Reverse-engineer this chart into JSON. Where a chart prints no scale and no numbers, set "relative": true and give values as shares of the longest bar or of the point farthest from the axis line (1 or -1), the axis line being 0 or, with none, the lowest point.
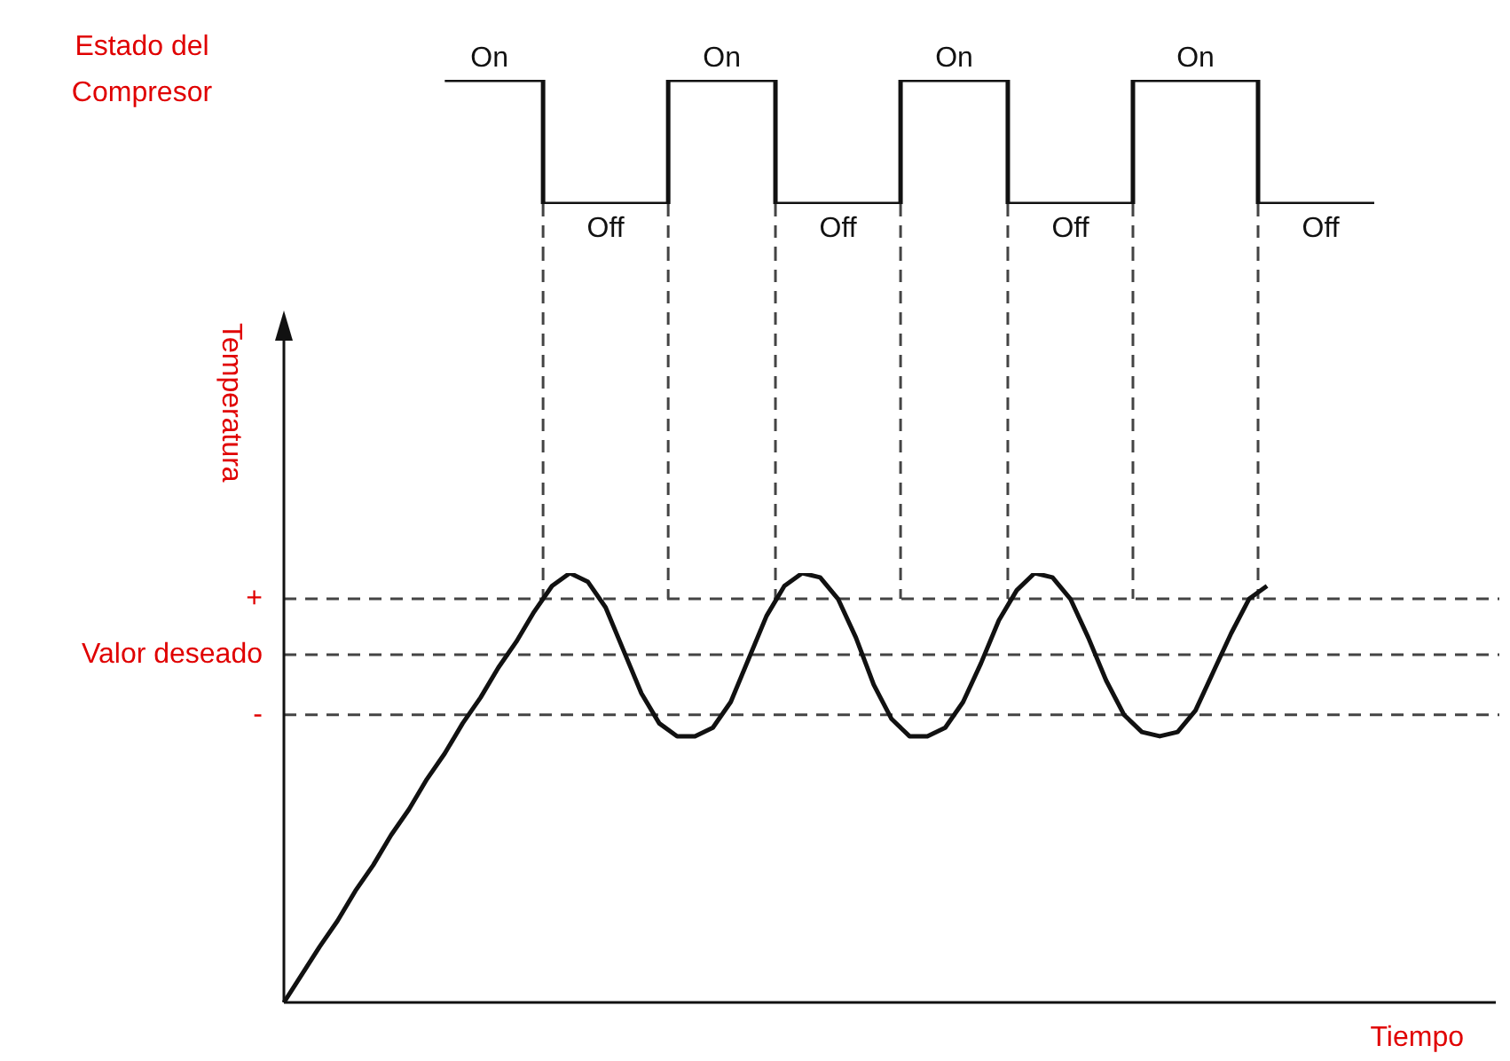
{
  "chart_data": [
    {
      "type": "step",
      "relative": true,
      "ylabel": "Estado del Compresor",
      "legend": false,
      "categories": [
        null,
        null,
        null,
        null,
        null,
        null,
        null,
        null,
        null,
        null,
        null,
        null,
        null,
        null,
        null,
        null,
        null,
        null,
        null,
        null,
        null,
        null,
        null,
        null,
        null,
        null,
        null,
        null,
        null,
        null,
        null,
        null,
        null,
        null,
        null,
        null,
        null,
        null,
        null,
        null,
        null,
        null,
        null,
        null,
        null,
        null,
        null,
        null,
        null,
        null,
        null,
        null,
        null,
        null,
        null,
        null,
        null,
        null,
        null,
        null,
        null,
        null,
        null,
        null,
        null,
        null,
        null,
        null,
        null
      ],
      "series": [
        {
          "color": "#111111",
          "values": [
            null,
            null,
            null,
            null,
            null,
            null,
            null,
            null,
            null,
            1,
            1,
            1,
            1,
            1,
            1,
            0,
            0,
            0,
            0,
            0,
            0,
            0,
            1,
            1,
            1,
            1,
            1,
            1,
            0,
            0,
            0,
            0,
            0,
            0,
            0,
            1,
            1,
            1,
            1,
            1,
            1,
            0,
            0,
            0,
            0,
            0,
            0,
            0,
            1,
            1,
            1,
            1,
            1,
            1,
            1,
            0,
            0,
            0,
            0,
            0,
            0,
            0,
            null,
            null,
            null,
            null,
            null,
            null,
            null
          ]
        }
      ],
      "annotations": [
        "On",
        "Off",
        "On",
        "Off",
        "On",
        "Off",
        "On",
        "Off"
      ]
    },
    {
      "type": "line",
      "relative": true,
      "xlabel": "Tiempo",
      "ylabel": "Temperatura",
      "legend": false,
      "categories": [
        null,
        null,
        null,
        null,
        null,
        null,
        null,
        null,
        null,
        null,
        null,
        null,
        null,
        null,
        null,
        null,
        null,
        null,
        null,
        null,
        null,
        null,
        null,
        null,
        null,
        null,
        null,
        null,
        null,
        null,
        null,
        null,
        null,
        null,
        null,
        null,
        null,
        null,
        null,
        null,
        null,
        null,
        null,
        null,
        null,
        null,
        null,
        null,
        null,
        null,
        null,
        null,
        null,
        null,
        null,
        null,
        null,
        null,
        null,
        null,
        null,
        null,
        null,
        null,
        null,
        null,
        null,
        null,
        null
      ],
      "series": [
        {
          "color": "#111111",
          "values": [
            0,
            0.065,
            0.13,
            0.19,
            0.26,
            0.32,
            0.39,
            0.45,
            0.52,
            0.58,
            0.65,
            0.71,
            0.78,
            0.84,
            0.91,
            0.97,
            1,
            0.98,
            0.92,
            0.82,
            0.72,
            0.65,
            0.62,
            0.62,
            0.64,
            0.7,
            0.8,
            0.9,
            0.97,
            1,
            0.99,
            0.94,
            0.85,
            0.74,
            0.66,
            0.62,
            0.62,
            0.64,
            0.7,
            0.79,
            0.89,
            0.96,
            1,
            0.99,
            0.94,
            0.85,
            0.75,
            0.67,
            0.63,
            0.62,
            0.63,
            0.68,
            0.77,
            0.86,
            0.94,
            0.97,
            null,
            null,
            null,
            null,
            null,
            null,
            null,
            null,
            null,
            null,
            null,
            null,
            null
          ]
        }
      ],
      "ref_lines": [
        {
          "axis": "y",
          "value": 0.94,
          "label": "+",
          "color": "#444444",
          "line_style": "dashed"
        },
        {
          "axis": "y",
          "value": 0.81,
          "label": "Valor deseado",
          "color": "#444444",
          "line_style": "dashed"
        },
        {
          "axis": "y",
          "value": 0.67,
          "label": "-",
          "color": "#444444",
          "line_style": "dashed"
        }
      ]
    }
  ]
}
